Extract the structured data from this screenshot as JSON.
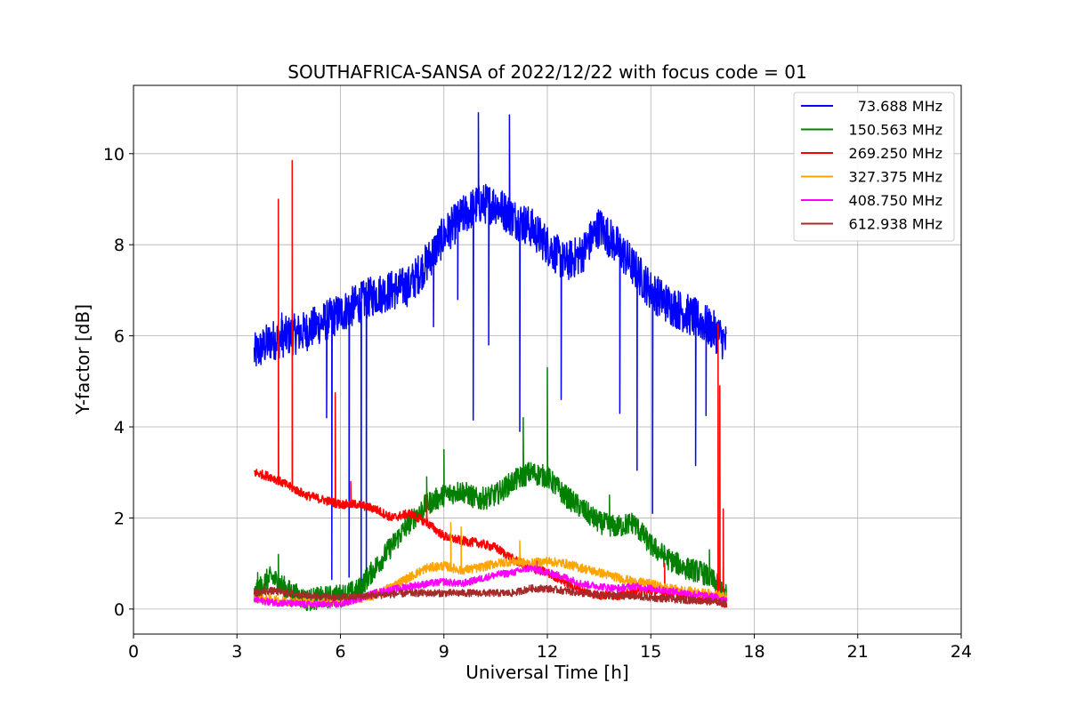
{
  "chart_data": {
    "type": "line",
    "title": "SOUTHAFRICA-SANSA of 2022/12/22 with focus code = 01",
    "xlabel": "Universal Time [h]",
    "ylabel": "Y-factor [dB]",
    "xlim": [
      0,
      24
    ],
    "ylim": [
      -0.55,
      11.5
    ],
    "xticks": [
      0,
      3,
      6,
      9,
      12,
      15,
      18,
      21,
      24
    ],
    "yticks": [
      0,
      2,
      4,
      6,
      8,
      10
    ],
    "grid": true,
    "legend_position": "top-right",
    "series": [
      {
        "name": "73.688 MHz",
        "color": "#0000ff",
        "x": [
          3.5,
          4.0,
          4.5,
          5.0,
          5.5,
          6.0,
          6.5,
          7.0,
          7.5,
          8.0,
          8.5,
          9.0,
          9.5,
          10.0,
          10.5,
          11.0,
          11.5,
          12.0,
          12.5,
          13.0,
          13.5,
          14.0,
          14.5,
          15.0,
          15.5,
          16.0,
          16.5,
          17.0,
          17.2
        ],
        "y": [
          5.6,
          5.9,
          6.0,
          6.1,
          6.3,
          6.5,
          6.7,
          6.9,
          7.0,
          7.1,
          7.6,
          8.2,
          8.6,
          8.9,
          8.9,
          8.6,
          8.4,
          8.0,
          7.6,
          7.8,
          8.4,
          8.0,
          7.5,
          7.0,
          6.7,
          6.5,
          6.3,
          6.0,
          5.8
        ],
        "spikes": [
          [
            4.3,
            6.5
          ],
          [
            4.6,
            6.6
          ],
          [
            5.6,
            4.2
          ],
          [
            5.75,
            0.65
          ],
          [
            6.25,
            0.7
          ],
          [
            6.6,
            0.3
          ],
          [
            6.75,
            0.6
          ],
          [
            8.7,
            6.2
          ],
          [
            9.4,
            6.8
          ],
          [
            9.85,
            4.15
          ],
          [
            10.0,
            10.9
          ],
          [
            10.3,
            5.8
          ],
          [
            10.9,
            10.85
          ],
          [
            11.2,
            3.9
          ],
          [
            12.4,
            4.6
          ],
          [
            14.1,
            4.3
          ],
          [
            14.6,
            3.05
          ],
          [
            15.05,
            2.1
          ],
          [
            16.3,
            3.15
          ],
          [
            16.6,
            4.25
          ]
        ]
      },
      {
        "name": "150.563 MHz",
        "color": "#008000",
        "x": [
          3.5,
          3.8,
          4.0,
          4.5,
          5.0,
          5.5,
          6.0,
          6.5,
          7.0,
          7.5,
          8.0,
          8.5,
          9.0,
          9.5,
          10.0,
          10.5,
          11.0,
          11.5,
          12.0,
          12.5,
          13.0,
          13.5,
          14.0,
          14.5,
          15.0,
          15.5,
          16.0,
          16.5,
          17.0,
          17.2
        ],
        "y": [
          0.3,
          0.6,
          0.7,
          0.4,
          0.2,
          0.25,
          0.3,
          0.4,
          0.9,
          1.4,
          1.9,
          2.3,
          2.5,
          2.6,
          2.4,
          2.5,
          2.8,
          3.0,
          2.9,
          2.5,
          2.2,
          1.9,
          1.8,
          1.9,
          1.4,
          1.1,
          0.9,
          0.8,
          0.5,
          0.3
        ],
        "spikes": [
          [
            3.6,
            0.8
          ],
          [
            4.2,
            1.2
          ],
          [
            8.5,
            2.9
          ],
          [
            9.0,
            3.5
          ],
          [
            11.3,
            4.2
          ],
          [
            12.0,
            5.3
          ],
          [
            13.8,
            2.5
          ],
          [
            16.7,
            1.3
          ],
          [
            17.1,
            0.9
          ]
        ]
      },
      {
        "name": "269.250 MHz",
        "color": "#ff0000",
        "x": [
          3.5,
          4.0,
          4.5,
          5.0,
          5.5,
          6.0,
          6.5,
          7.0,
          7.5,
          8.0,
          8.5,
          9.0,
          9.5,
          10.0,
          10.5,
          11.0,
          11.5,
          12.0,
          12.5,
          13.0,
          13.5,
          14.0,
          14.5,
          15.0,
          15.5,
          16.0,
          16.5,
          16.9,
          17.2
        ],
        "y": [
          3.0,
          2.9,
          2.7,
          2.5,
          2.4,
          2.3,
          2.3,
          2.2,
          2.0,
          2.1,
          1.9,
          1.6,
          1.5,
          1.45,
          1.35,
          1.1,
          0.9,
          0.8,
          0.6,
          0.4,
          0.3,
          0.3,
          0.35,
          0.4,
          0.35,
          0.3,
          0.2,
          0.2,
          0.1
        ],
        "spikes": [
          [
            4.2,
            9.0
          ],
          [
            4.6,
            9.85
          ],
          [
            5.85,
            4.75
          ],
          [
            6.3,
            2.8
          ],
          [
            8.5,
            2.5
          ],
          [
            15.4,
            1.0
          ],
          [
            16.95,
            6.25
          ],
          [
            17.0,
            4.9
          ],
          [
            17.1,
            2.2
          ]
        ]
      },
      {
        "name": "327.375 MHz",
        "color": "#ffa500",
        "x": [
          3.5,
          4.0,
          5.0,
          6.0,
          7.0,
          7.5,
          8.0,
          8.5,
          9.0,
          9.5,
          10.0,
          10.5,
          11.0,
          11.5,
          12.0,
          12.5,
          13.0,
          13.5,
          14.0,
          14.5,
          15.0,
          15.5,
          16.0,
          16.5,
          17.0,
          17.2
        ],
        "y": [
          0.25,
          0.2,
          0.15,
          0.15,
          0.3,
          0.5,
          0.7,
          0.9,
          0.95,
          0.85,
          0.9,
          1.0,
          1.05,
          1.0,
          1.05,
          1.0,
          0.9,
          0.8,
          0.7,
          0.6,
          0.55,
          0.45,
          0.4,
          0.35,
          0.3,
          0.25
        ],
        "spikes": [
          [
            9.2,
            1.9
          ],
          [
            9.5,
            1.8
          ],
          [
            11.2,
            1.5
          ]
        ]
      },
      {
        "name": "408.750 MHz",
        "color": "#ff00ff",
        "x": [
          3.5,
          4.0,
          5.0,
          6.0,
          7.0,
          8.0,
          8.5,
          9.0,
          9.5,
          10.0,
          10.5,
          11.0,
          11.5,
          12.0,
          12.5,
          13.0,
          13.5,
          14.0,
          14.5,
          15.0,
          15.5,
          16.0,
          16.5,
          17.0,
          17.2
        ],
        "y": [
          0.2,
          0.15,
          0.1,
          0.1,
          0.35,
          0.5,
          0.55,
          0.6,
          0.55,
          0.65,
          0.75,
          0.8,
          0.9,
          0.8,
          0.7,
          0.55,
          0.5,
          0.45,
          0.5,
          0.45,
          0.4,
          0.35,
          0.3,
          0.25,
          0.2
        ],
        "spikes": [
          [
            11.7,
            1.05
          ]
        ]
      },
      {
        "name": "612.938 MHz",
        "color": "#a52a2a",
        "x": [
          3.5,
          4.0,
          5.0,
          6.0,
          7.0,
          8.0,
          9.0,
          10.0,
          11.0,
          11.5,
          12.0,
          12.5,
          13.0,
          13.5,
          14.0,
          14.5,
          15.0,
          15.5,
          16.0,
          16.5,
          17.0,
          17.2
        ],
        "y": [
          0.35,
          0.4,
          0.3,
          0.25,
          0.3,
          0.35,
          0.35,
          0.35,
          0.35,
          0.45,
          0.45,
          0.4,
          0.35,
          0.3,
          0.3,
          0.28,
          0.25,
          0.22,
          0.2,
          0.18,
          0.15,
          0.1
        ],
        "spikes": [
          [
            3.8,
            0.55
          ],
          [
            12.6,
            0.6
          ]
        ]
      }
    ]
  }
}
